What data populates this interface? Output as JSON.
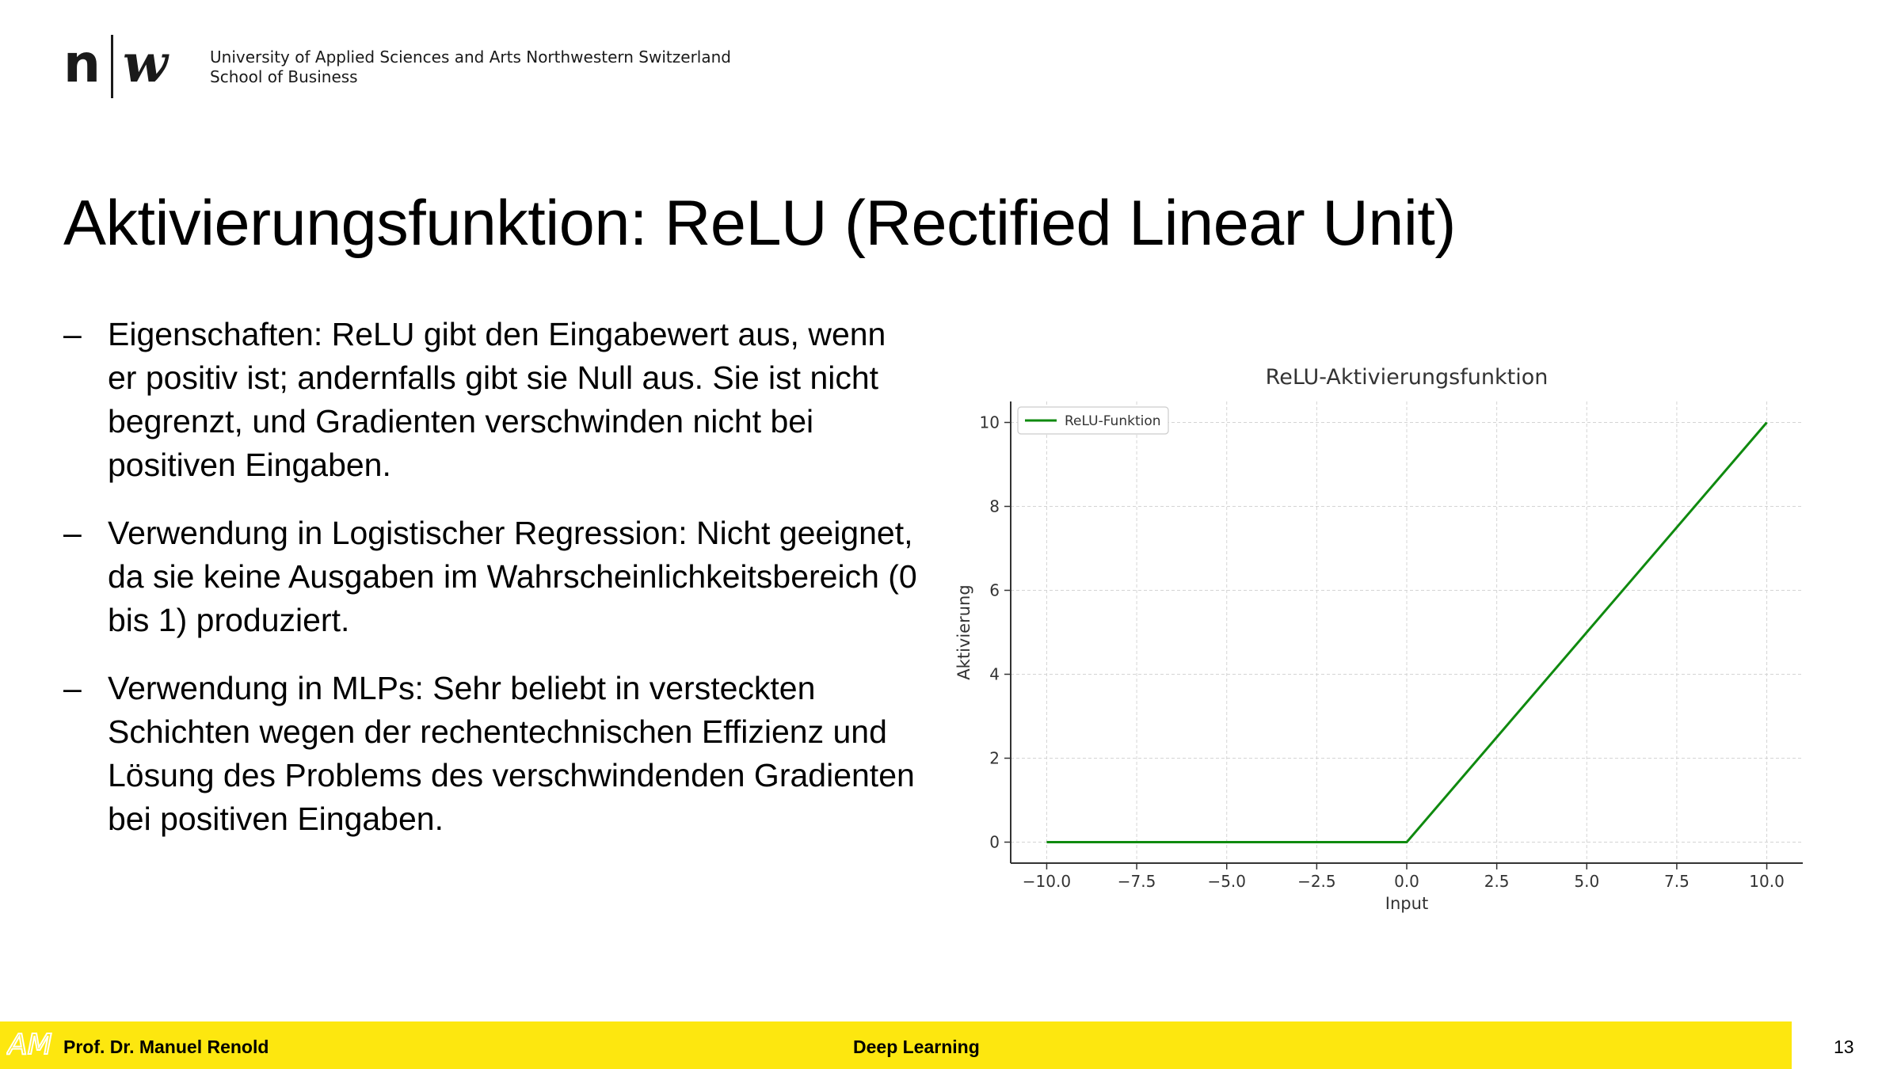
{
  "header": {
    "logo": {
      "part1": "n",
      "part2": "w",
      "name": "nw-logo"
    },
    "institution_line1": "University of Applied Sciences and Arts Northwestern Switzerland",
    "institution_line2": "School of Business"
  },
  "slide": {
    "title": "Aktivierungsfunktion: ReLU (Rectified Linear Unit)",
    "bullet_marker": "–",
    "bullets": [
      "Eigenschaften: ReLU gibt den Eingabewert aus, wenn er positiv ist; andernfalls gibt sie Null aus. Sie ist nicht begrenzt, und Gradienten verschwinden nicht bei positiven Eingaben.",
      "Verwendung in Logistischer Regression: Nicht geeignet, da sie keine Ausgaben im Wahrscheinlichkeitsbereich (0 bis 1) produziert.",
      "Verwendung in MLPs: Sehr beliebt in versteckten Schichten wegen der rechentechnischen Effizienz und Lösung des Problems des verschwindenden Gradienten bei positiven Eingaben."
    ]
  },
  "chart_data": {
    "type": "line",
    "title": "ReLU-Aktivierungsfunktion",
    "xlabel": "Input",
    "ylabel": "Aktivierung",
    "xlim": [
      -11,
      11
    ],
    "ylim": [
      -0.5,
      10.5
    ],
    "xticks": [
      -10,
      -7.5,
      -5,
      -2.5,
      0,
      2.5,
      5,
      7.5,
      10
    ],
    "xtick_labels": [
      "−10.0",
      "−7.5",
      "−5.0",
      "−2.5",
      "0.0",
      "2.5",
      "5.0",
      "7.5",
      "10.0"
    ],
    "yticks": [
      0,
      2,
      4,
      6,
      8,
      10
    ],
    "ytick_labels": [
      "0",
      "2",
      "4",
      "6",
      "8",
      "10"
    ],
    "grid": true,
    "legend_position": "top-left",
    "series": [
      {
        "name": "ReLU-Funktion",
        "color": "#0f8a0f",
        "x": [
          -10,
          0,
          10
        ],
        "y": [
          0,
          0,
          10
        ]
      }
    ]
  },
  "footer": {
    "logo_text": "AM",
    "author": "Prof. Dr. Manuel Renold",
    "course": "Deep Learning",
    "page_number": "13",
    "bar_color": "#fde70f"
  }
}
